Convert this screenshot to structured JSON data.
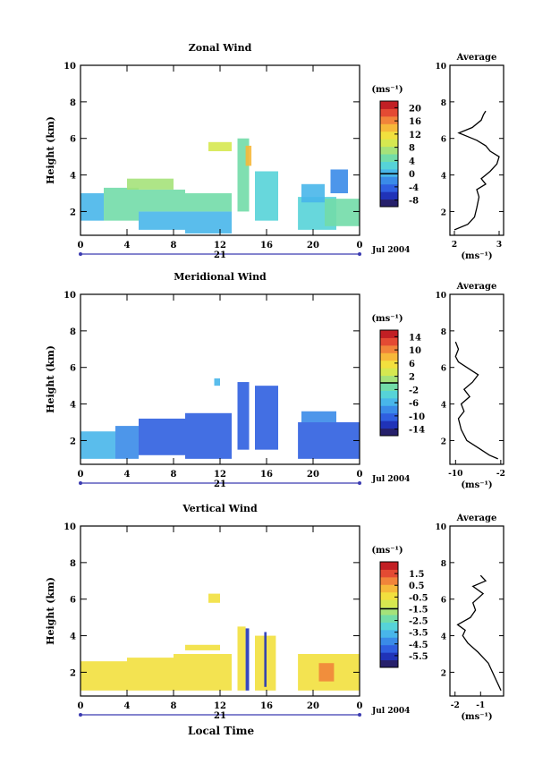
{
  "footer": {
    "xlabel": "Local Time"
  },
  "colormap": [
    "#26206b",
    "#2033b8",
    "#2f5fe0",
    "#3a8be8",
    "#48b6ea",
    "#56d3d8",
    "#72dca8",
    "#a5e27a",
    "#d6e850",
    "#f2e03e",
    "#f6b83a",
    "#f1843a",
    "#e44a33",
    "#c21f24"
  ],
  "chart_data": [
    {
      "type": "heatmap",
      "id": "zonal",
      "title": "Zonal Wind",
      "ylabel": "Height (km)",
      "xlim": [
        0,
        24
      ],
      "ylim": [
        0.7,
        10
      ],
      "xticks": [
        "0",
        "4",
        "8",
        "12",
        "16",
        "20",
        "0"
      ],
      "yticks": [
        "2",
        "4",
        "6",
        "8",
        "10"
      ],
      "date_label": "21",
      "month_label": "Jul 2004",
      "colorbar": {
        "unit": "(ms⁻¹)",
        "ticks": [
          "20",
          "16",
          "12",
          "8",
          "4",
          "0",
          "-4",
          "-8"
        ],
        "min": -10,
        "max": 22,
        "marked": 0
      },
      "average": {
        "title": "Average",
        "xlabel": "(ms⁻¹)",
        "xlim": [
          1.9,
          3.1
        ],
        "xticks": [
          "2",
          "3"
        ],
        "profile": [
          [
            2.0,
            1.0
          ],
          [
            2.3,
            1.3
          ],
          [
            2.45,
            1.7
          ],
          [
            2.5,
            2.2
          ],
          [
            2.55,
            2.8
          ],
          [
            2.5,
            3.2
          ],
          [
            2.7,
            3.5
          ],
          [
            2.6,
            3.8
          ],
          [
            2.8,
            4.2
          ],
          [
            2.95,
            4.6
          ],
          [
            3.0,
            5.0
          ],
          [
            2.8,
            5.3
          ],
          [
            2.7,
            5.6
          ],
          [
            2.5,
            5.9
          ],
          [
            2.3,
            6.1
          ],
          [
            2.1,
            6.3
          ],
          [
            2.4,
            6.6
          ],
          [
            2.6,
            7.0
          ],
          [
            2.65,
            7.3
          ],
          [
            2.7,
            7.5
          ]
        ]
      },
      "blocks": [
        [
          0,
          2,
          1.5,
          3.0,
          4
        ],
        [
          2,
          5,
          1.5,
          3.3,
          6
        ],
        [
          5,
          9,
          1.0,
          2.0,
          4
        ],
        [
          5,
          9,
          2.0,
          3.2,
          6
        ],
        [
          9,
          13,
          0.8,
          2.0,
          4
        ],
        [
          9,
          13,
          2.0,
          3.0,
          6
        ],
        [
          4,
          8,
          3.2,
          3.8,
          7
        ],
        [
          11,
          13,
          5.3,
          5.8,
          8
        ],
        [
          13.5,
          14.5,
          2.0,
          6.0,
          6
        ],
        [
          14.2,
          14.7,
          4.5,
          5.6,
          10
        ],
        [
          15,
          17,
          1.5,
          4.2,
          5
        ],
        [
          18.7,
          22,
          1.0,
          2.8,
          5
        ],
        [
          19,
          21,
          2.5,
          3.5,
          4
        ],
        [
          21,
          24,
          1.2,
          2.7,
          6
        ],
        [
          21.5,
          23,
          3.0,
          4.3,
          3
        ]
      ]
    },
    {
      "type": "heatmap",
      "id": "meridional",
      "title": "Meridional Wind",
      "ylabel": "Height (km)",
      "xlim": [
        0,
        24
      ],
      "ylim": [
        0.7,
        10
      ],
      "xticks": [
        "0",
        "4",
        "8",
        "12",
        "16",
        "20",
        "0"
      ],
      "yticks": [
        "2",
        "4",
        "6",
        "8",
        "10"
      ],
      "date_label": "21",
      "month_label": "Jul 2004",
      "colorbar": {
        "unit": "(ms⁻¹)",
        "ticks": [
          "14",
          "10",
          "6",
          "2",
          "-2",
          "-6",
          "-10",
          "-14"
        ],
        "min": -16,
        "max": 16,
        "marked": 0
      },
      "average": {
        "title": "Average",
        "xlabel": "(ms⁻¹)",
        "xlim": [
          -11,
          -1.5
        ],
        "xticks": [
          "-10",
          "-2"
        ],
        "profile": [
          [
            -2.5,
            1.0
          ],
          [
            -4,
            1.2
          ],
          [
            -6,
            1.6
          ],
          [
            -8,
            2.0
          ],
          [
            -9,
            2.6
          ],
          [
            -9.5,
            3.2
          ],
          [
            -8.5,
            3.6
          ],
          [
            -9,
            4.0
          ],
          [
            -7.5,
            4.4
          ],
          [
            -8.5,
            4.8
          ],
          [
            -7,
            5.2
          ],
          [
            -6,
            5.6
          ],
          [
            -8,
            6.0
          ],
          [
            -9.5,
            6.3
          ],
          [
            -10,
            6.6
          ],
          [
            -9.5,
            7.0
          ],
          [
            -10,
            7.4
          ]
        ]
      },
      "blocks": [
        [
          0,
          3,
          1.0,
          2.5,
          4
        ],
        [
          3,
          5,
          1.0,
          2.8,
          3
        ],
        [
          5,
          9,
          1.2,
          3.2,
          2
        ],
        [
          9,
          13,
          1.0,
          3.5,
          2
        ],
        [
          13.5,
          14.5,
          1.5,
          5.2,
          2
        ],
        [
          15,
          17,
          1.5,
          5.0,
          2
        ],
        [
          18.7,
          24,
          1.0,
          3.0,
          2
        ],
        [
          19,
          22,
          3.0,
          3.6,
          3
        ],
        [
          11.5,
          12,
          5.0,
          5.4,
          4
        ]
      ]
    },
    {
      "type": "heatmap",
      "id": "vertical",
      "title": "Vertical Wind",
      "ylabel": "Height (km)",
      "xlim": [
        0,
        24
      ],
      "ylim": [
        0.7,
        10
      ],
      "xticks": [
        "0",
        "4",
        "8",
        "12",
        "16",
        "20",
        "0"
      ],
      "yticks": [
        "2",
        "4",
        "6",
        "8",
        "10"
      ],
      "date_label": "21",
      "month_label": "Jul 2004",
      "colorbar": {
        "unit": "(ms⁻¹)",
        "ticks": [
          "1.5",
          "0.5",
          "-0.5",
          "-1.5",
          "-2.5",
          "-3.5",
          "-4.5",
          "-5.5"
        ],
        "min": -6.5,
        "max": 2.5,
        "marked": -1.5
      },
      "average": {
        "title": "Average",
        "xlabel": "(ms⁻¹)",
        "xlim": [
          -2.2,
          -0.1
        ],
        "xticks": [
          "-2",
          "-1"
        ],
        "profile": [
          [
            -0.2,
            1.0
          ],
          [
            -0.4,
            1.6
          ],
          [
            -0.7,
            2.5
          ],
          [
            -1.1,
            3.1
          ],
          [
            -1.5,
            3.6
          ],
          [
            -1.7,
            4.0
          ],
          [
            -1.6,
            4.3
          ],
          [
            -1.9,
            4.6
          ],
          [
            -1.4,
            5.0
          ],
          [
            -1.2,
            5.4
          ],
          [
            -1.3,
            5.8
          ],
          [
            -0.9,
            6.3
          ],
          [
            -1.3,
            6.7
          ],
          [
            -0.8,
            7.0
          ],
          [
            -1.0,
            7.3
          ]
        ]
      },
      "blocks": [
        [
          0,
          4,
          1.0,
          2.6,
          9
        ],
        [
          4,
          8,
          1.0,
          2.8,
          9
        ],
        [
          8,
          13,
          1.0,
          3.0,
          9
        ],
        [
          9,
          12,
          3.2,
          3.5,
          9
        ],
        [
          13.5,
          14.2,
          1.0,
          4.5,
          9
        ],
        [
          14.2,
          14.5,
          1.0,
          4.4,
          1
        ],
        [
          15,
          16.8,
          1.0,
          4.0,
          9
        ],
        [
          15.8,
          16.0,
          1.2,
          4.2,
          1
        ],
        [
          18.7,
          24,
          1.0,
          3.0,
          9
        ],
        [
          20.5,
          21.8,
          1.5,
          2.5,
          11
        ],
        [
          11,
          12,
          5.8,
          6.3,
          9
        ]
      ]
    }
  ]
}
